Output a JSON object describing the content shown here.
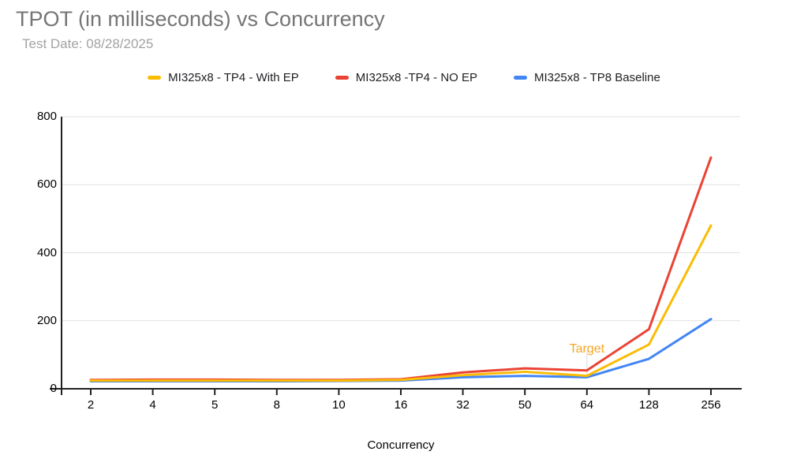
{
  "title": "TPOT (in milliseconds) vs Concurrency",
  "subtitle": "Test Date: 08/28/2025",
  "colors": {
    "title_gray": "#757575",
    "subtitle_gray": "#A3A3A3",
    "series_yellow": "#FBBC04",
    "series_red": "#EA4335",
    "series_blue": "#4285F4",
    "annotation_yellow": "#F5A623"
  },
  "chart_data": {
    "type": "line",
    "title": "TPOT (in milliseconds) vs Concurrency",
    "subtitle": "Test Date: 08/28/2025",
    "xlabel": "Concurrency",
    "ylabel": "",
    "categories": [
      "2",
      "4",
      "5",
      "8",
      "10",
      "16",
      "32",
      "50",
      "64",
      "128",
      "256"
    ],
    "y_ticks": [
      0,
      200,
      400,
      600,
      800
    ],
    "ylim": [
      0,
      800
    ],
    "grid": true,
    "legend_position": "top",
    "series": [
      {
        "name": "MI325x8 - TP4 - With EP",
        "color": "#FBBC04",
        "values": [
          24,
          24,
          24,
          24,
          24,
          26,
          40,
          50,
          38,
          130,
          480
        ]
      },
      {
        "name": "MI325x8 -TP4 - NO EP",
        "color": "#EA4335",
        "values": [
          26,
          27,
          27,
          26,
          26,
          28,
          48,
          60,
          54,
          175,
          680
        ]
      },
      {
        "name": "MI325x8 - TP8 Baseline",
        "color": "#4285F4",
        "values": [
          22,
          22,
          22,
          22,
          23,
          24,
          34,
          38,
          34,
          88,
          205
        ]
      }
    ],
    "annotation": {
      "text": "Target",
      "series": "MI325x8 - TP4 - With EP",
      "category": "64",
      "color": "#F5A623"
    }
  }
}
